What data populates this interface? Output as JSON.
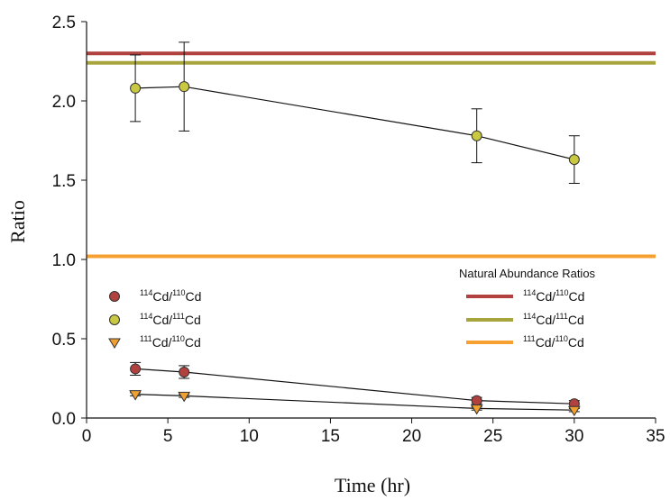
{
  "chart_data": {
    "type": "line",
    "xlabel": "Time (hr)",
    "ylabel": "Ratio",
    "xlim": [
      0,
      35
    ],
    "ylim": [
      0,
      2.5
    ],
    "xticks": [
      "0",
      "5",
      "10",
      "15",
      "20",
      "25",
      "30",
      "35"
    ],
    "yticks": [
      "0.0",
      "0.5",
      "1.0",
      "1.5",
      "2.0",
      "2.5"
    ],
    "grid": false,
    "legend_left": {
      "placement": "lower-left"
    },
    "legend_right": {
      "placement": "lower-right",
      "title": "Natural Abundance Ratios"
    },
    "series": [
      {
        "name": "114Cd/110Cd",
        "label": {
          "sup1": "114",
          "base1": "Cd/",
          "sup2": "110",
          "base2": "Cd"
        },
        "marker": "circle",
        "color": "#b0413e",
        "x": [
          3,
          6,
          24,
          30
        ],
        "y": [
          0.31,
          0.29,
          0.11,
          0.09
        ],
        "err": [
          0.04,
          0.04,
          0.02,
          0.02
        ]
      },
      {
        "name": "114Cd/111Cd",
        "label": {
          "sup1": "114",
          "base1": "Cd/",
          "sup2": "111",
          "base2": "Cd"
        },
        "marker": "circle",
        "color": "#c9c842",
        "x": [
          3,
          6,
          24,
          30
        ],
        "y": [
          2.08,
          2.09,
          1.78,
          1.63
        ],
        "err": [
          0.21,
          0.28,
          0.17,
          0.15
        ]
      },
      {
        "name": "111Cd/110Cd",
        "label": {
          "sup1": "111",
          "base1": "Cd/",
          "sup2": "110",
          "base2": "Cd"
        },
        "marker": "triangle-down",
        "color": "#f0a030",
        "x": [
          3,
          6,
          24,
          30
        ],
        "y": [
          0.15,
          0.14,
          0.06,
          0.05
        ],
        "err": [
          0.01,
          0.01,
          0.01,
          0.01
        ]
      }
    ],
    "reference_lines": [
      {
        "name": "114Cd/110Cd",
        "label": {
          "sup1": "114",
          "base1": "Cd/",
          "sup2": "110",
          "base2": "Cd"
        },
        "y": 2.3,
        "color": "#b0413e"
      },
      {
        "name": "114Cd/111Cd",
        "label": {
          "sup1": "114",
          "base1": "Cd/",
          "sup2": "111",
          "base2": "Cd"
        },
        "y": 2.24,
        "color": "#a7a53c"
      },
      {
        "name": "111Cd/110Cd",
        "label": {
          "sup1": "111",
          "base1": "Cd/",
          "sup2": "110",
          "base2": "Cd"
        },
        "y": 1.02,
        "color": "#f5a030"
      }
    ]
  }
}
